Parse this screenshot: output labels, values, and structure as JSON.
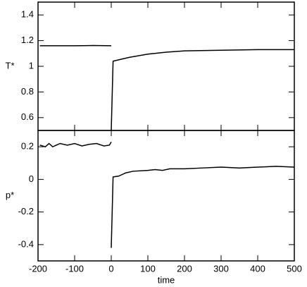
{
  "chart_data": [
    {
      "type": "line",
      "ylabel": "T*",
      "xlim": [
        -200,
        500
      ],
      "ylim": [
        0.5,
        1.5
      ],
      "yticks": [
        0.6,
        0.8,
        1,
        1.2,
        1.4
      ],
      "color": "#000000",
      "x": [
        -195,
        -150,
        -100,
        -50,
        0,
        null,
        0,
        5,
        20,
        50,
        100,
        150,
        200,
        300,
        400,
        500
      ],
      "values": [
        1.16,
        1.16,
        1.16,
        1.162,
        1.16,
        null,
        0.5,
        1.04,
        1.05,
        1.07,
        1.095,
        1.11,
        1.12,
        1.125,
        1.13,
        1.13
      ]
    },
    {
      "type": "line",
      "ylabel": "p*",
      "xlabel": "time",
      "xlim": [
        -200,
        500
      ],
      "ylim": [
        -0.5,
        0.3
      ],
      "xticks": [
        -200,
        -100,
        0,
        100,
        200,
        300,
        400,
        500
      ],
      "yticks": [
        0.2,
        0,
        -0.2,
        -0.4
      ],
      "color": "#000000",
      "x": [
        -195,
        -180,
        -170,
        -160,
        -150,
        -140,
        -120,
        -100,
        -80,
        -60,
        -40,
        -20,
        -5,
        0,
        null,
        0,
        5,
        20,
        40,
        60,
        100,
        120,
        140,
        160,
        200,
        250,
        300,
        350,
        400,
        450,
        500
      ],
      "values": [
        0.21,
        0.2,
        0.22,
        0.2,
        0.21,
        0.22,
        0.21,
        0.22,
        0.205,
        0.215,
        0.22,
        0.205,
        0.21,
        0.23,
        null,
        -0.42,
        0.015,
        0.02,
        0.04,
        0.05,
        0.055,
        0.06,
        0.055,
        0.065,
        0.065,
        0.07,
        0.075,
        0.07,
        0.075,
        0.08,
        0.075
      ]
    }
  ]
}
